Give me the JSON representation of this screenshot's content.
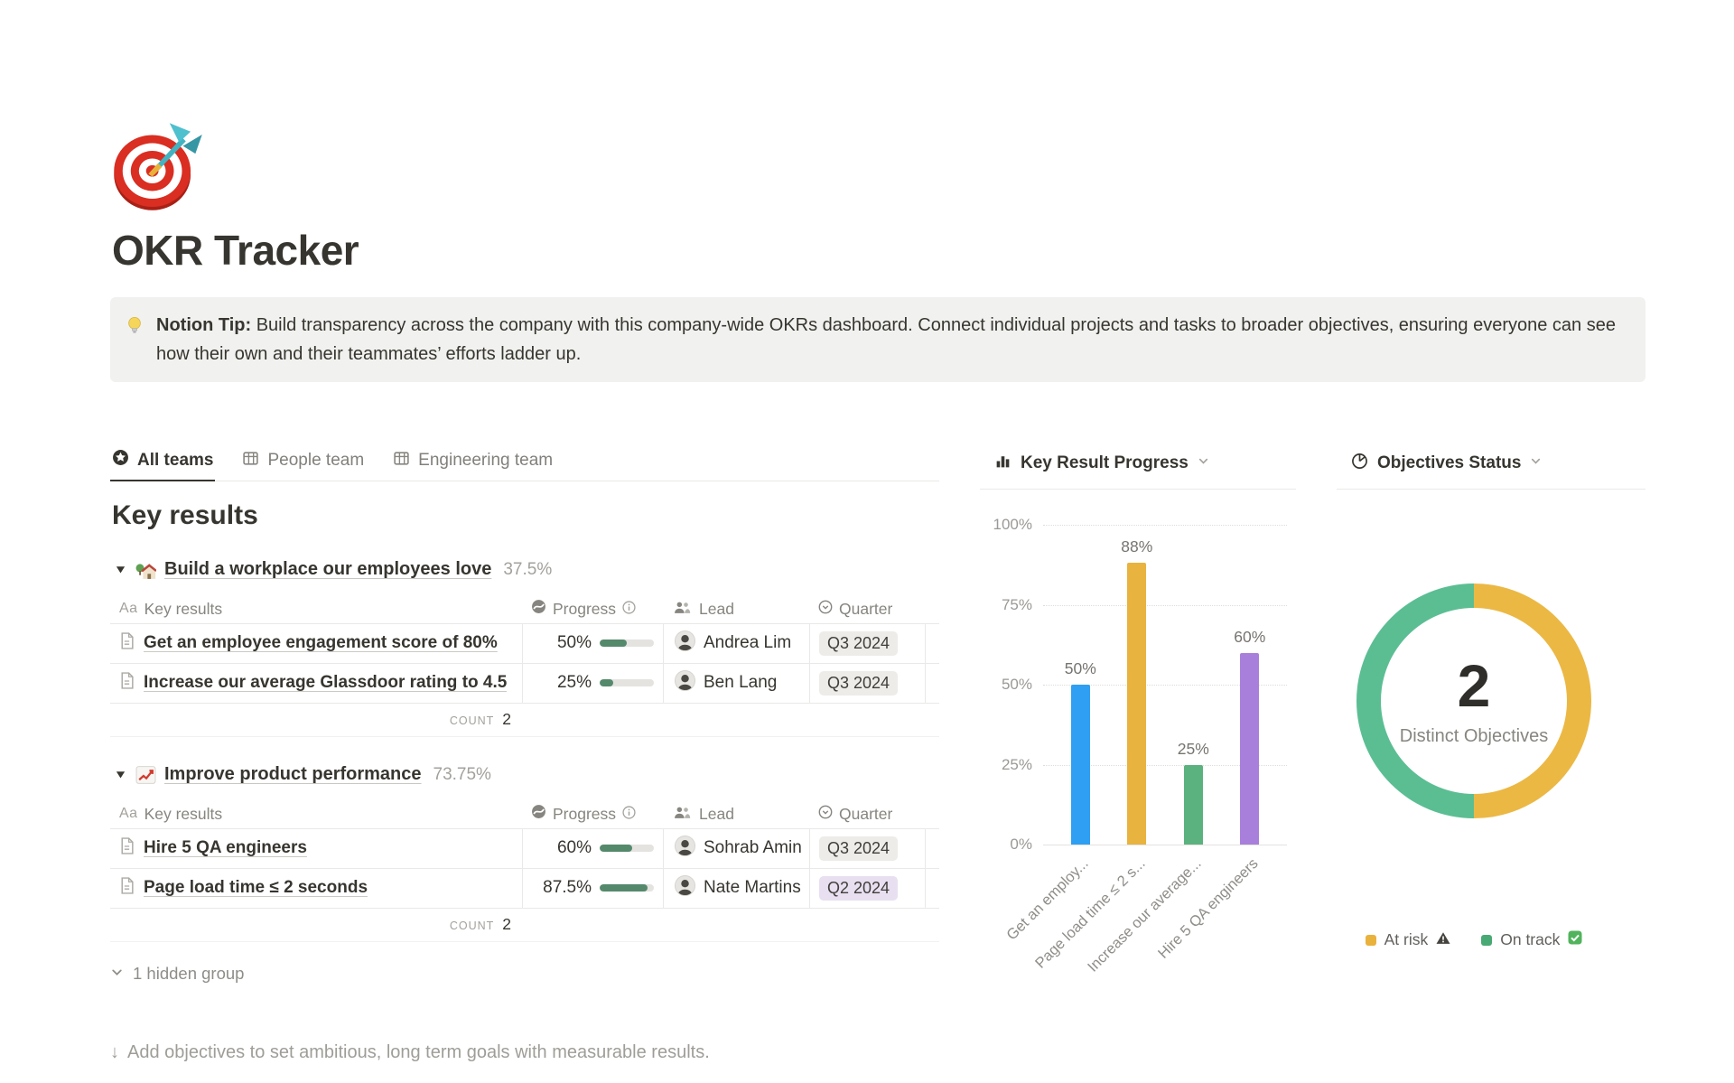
{
  "page": {
    "title": "OKR Tracker",
    "icon": "dartboard"
  },
  "callout": {
    "label": "Notion Tip:",
    "text": "Build transparency across the company with this company-wide OKRs dashboard. Connect individual projects and tasks to broader objectives, ensuring everyone can see how their own and their teammates’ efforts ladder up."
  },
  "tabs": [
    {
      "label": "All teams",
      "icon": "star-circle",
      "active": true
    },
    {
      "label": "People team",
      "icon": "table-grid",
      "active": false
    },
    {
      "label": "Engineering team",
      "icon": "table-grid",
      "active": false
    }
  ],
  "section_title": "Key results",
  "table_headers": {
    "name": "Key results",
    "progress": "Progress",
    "lead": "Lead",
    "quarter": "Quarter"
  },
  "icons": {
    "text_type": "Aa"
  },
  "count_label": "COUNT",
  "groups": [
    {
      "icon": "house-with-garden",
      "title": "Build a workplace our employees love",
      "percent": "37.5%",
      "count": "2",
      "rows": [
        {
          "name": "Get an employee engagement score of 80%",
          "progress": "50%",
          "progress_value": 50,
          "lead": "Andrea Lim",
          "quarter": "Q3 2024",
          "quarter_color": "gray"
        },
        {
          "name": "Increase our average Glassdoor rating to 4.5",
          "progress": "25%",
          "progress_value": 25,
          "lead": "Ben Lang",
          "quarter": "Q3 2024",
          "quarter_color": "gray"
        }
      ]
    },
    {
      "icon": "chart-increasing",
      "title": "Improve product performance",
      "percent": "73.75%",
      "count": "2",
      "rows": [
        {
          "name": "Hire 5 QA engineers",
          "progress": "60%",
          "progress_value": 60,
          "lead": "Sohrab Amin",
          "quarter": "Q3 2024",
          "quarter_color": "gray"
        },
        {
          "name": "Page load time ≤ 2 seconds",
          "progress": "87.5%",
          "progress_value": 87.5,
          "lead": "Nate Martins",
          "quarter": "Q2 2024",
          "quarter_color": "purple"
        }
      ]
    }
  ],
  "hidden_group": "1 hidden group",
  "footer": {
    "arrow": "↓",
    "text": "Add objectives to set ambitious, long term goals with measurable results."
  },
  "colors": {
    "progress_bar": "#55896C",
    "badge_gray_bg": "#EDECE9",
    "badge_purple_bg": "#E8DFF0",
    "callout_bg": "#F1F1EF"
  },
  "chart_data": [
    {
      "type": "bar",
      "title": "Key Result Progress",
      "categories": [
        "Get an employee engagement score of 80%",
        "Page load time ≤ 2 seconds",
        "Increase our average Glassdoor rating to 4.5",
        "Hire 5 QA engineers"
      ],
      "x_tick_labels": [
        "Get an employ...",
        "Page load time ≤ 2 s...",
        "Increase our average...",
        "Hire 5 QA engineers"
      ],
      "values": [
        50,
        88,
        25,
        60
      ],
      "value_labels": [
        "50%",
        "88%",
        "25%",
        "60%"
      ],
      "bar_colors": [
        "#2E9FF2",
        "#E8B33E",
        "#5BB27E",
        "#A97FDC"
      ],
      "y_ticks": [
        "0%",
        "25%",
        "50%",
        "75%",
        "100%"
      ],
      "ylim": [
        0,
        100
      ],
      "grid": "dotted horizontal",
      "legend_position": "none"
    },
    {
      "type": "donut",
      "title": "Objectives Status",
      "center_value": "2",
      "center_label": "Distinct Objectives",
      "slices": [
        {
          "label": "At risk",
          "value": 1,
          "color": "#EBB844"
        },
        {
          "label": "On track",
          "value": 1,
          "color": "#5BBE93"
        }
      ],
      "legend": [
        {
          "label": "At risk",
          "icon": "warning",
          "color": "#E9B23C"
        },
        {
          "label": "On track",
          "icon": "check",
          "color": "#49A974"
        }
      ],
      "legend_position": "bottom"
    }
  ]
}
